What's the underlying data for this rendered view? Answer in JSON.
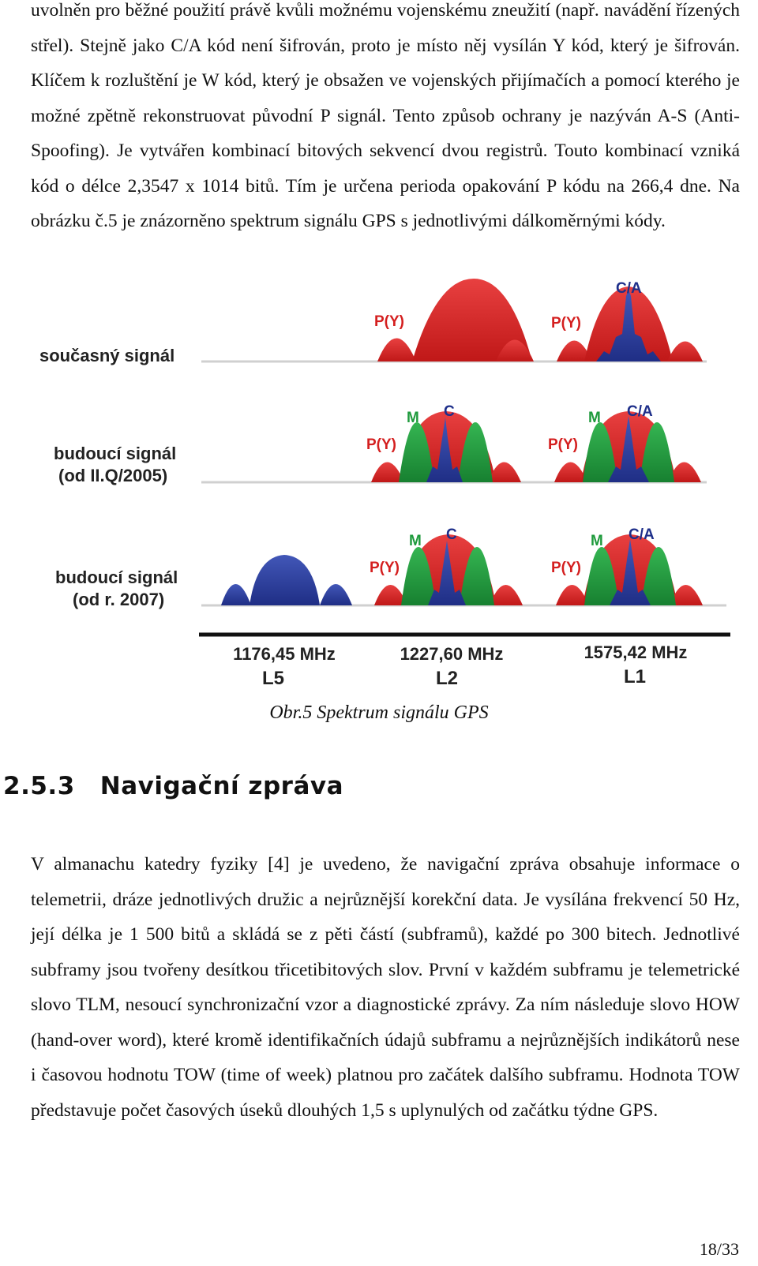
{
  "page": {
    "paragraph_top": "uvolněn pro běžné použití právě kvůli možnému vojenskému zneužití (např. navádění řízených střel). Stejně jako C/A kód není šifrován, proto je místo něj vysílán Y kód, který je šifrován. Klíčem k rozluštění je W kód, který je obsažen ve vojenských přijímačích a pomocí kterého je možné zpětně rekonstruovat původní P signál. Tento způsob ochrany je nazýván A-S (Anti-Spoofing). Je vytvářen kombinací bitových sekvencí dvou registrů. Touto kombinací vzniká kód o délce 2,3547 x 1014 bitů. Tím je určena perioda opakování P kódu na 266,4 dne. Na obrázku č.5 je znázorněno spektrum signálu GPS s jednotlivými dálkoměrnými kódy.",
    "figure_caption": "Obr.5 Spektrum signálu GPS",
    "heading_number": "2.5.3",
    "heading_title": "Navigační zpráva",
    "paragraph_bottom": "V almanachu katedry fyziky [4] je uvedeno, že navigační zpráva obsahuje informace o telemetrii, dráze jednotlivých družic a nejrůznější korekční data. Je vysílána frekvencí 50 Hz, její délka je 1 500 bitů a skládá se z pěti částí (subframů), každé po 300 bitech. Jednotlivé subframy jsou tvořeny desítkou třicetibitových slov. První v každém subframu je telemetrické slovo TLM, nesoucí synchronizační vzor a diagnostické zprávy. Za ním následuje slovo HOW (hand-over word), které kromě identifikačních údajů subframu a nejrůznějších indikátorů nese i časovou hodnotu TOW (time of week) platnou pro začátek dalšího subframu. Hodnota TOW představuje počet časových úseků dlouhých 1,5 s uplynulých od začátku týdne GPS.",
    "page_number": "18/33"
  },
  "figure": {
    "row_labels": {
      "current_line1": "současný signál",
      "future1_line1": "budoucí signál",
      "future1_line2": "(od II.Q/2005)",
      "future2_line1": "budoucí signál",
      "future2_line2": "(od r. 2007)"
    },
    "signal_labels": {
      "py": "P(Y)",
      "m": "M",
      "c": "C",
      "ca": "C/A"
    },
    "bands": [
      {
        "freq": "1176,45 MHz",
        "name": "L5"
      },
      {
        "freq": "1227,60 MHz",
        "name": "L2"
      },
      {
        "freq": "1575,42 MHz",
        "name": "L1"
      }
    ],
    "colors": {
      "py_red": "#d41f1f",
      "m_green": "#1e9a3c",
      "c_blue": "#1e2f8a",
      "l5_blue": "#2c3f9c",
      "axis": "#111111",
      "baseline": "#d0d0d0"
    }
  }
}
